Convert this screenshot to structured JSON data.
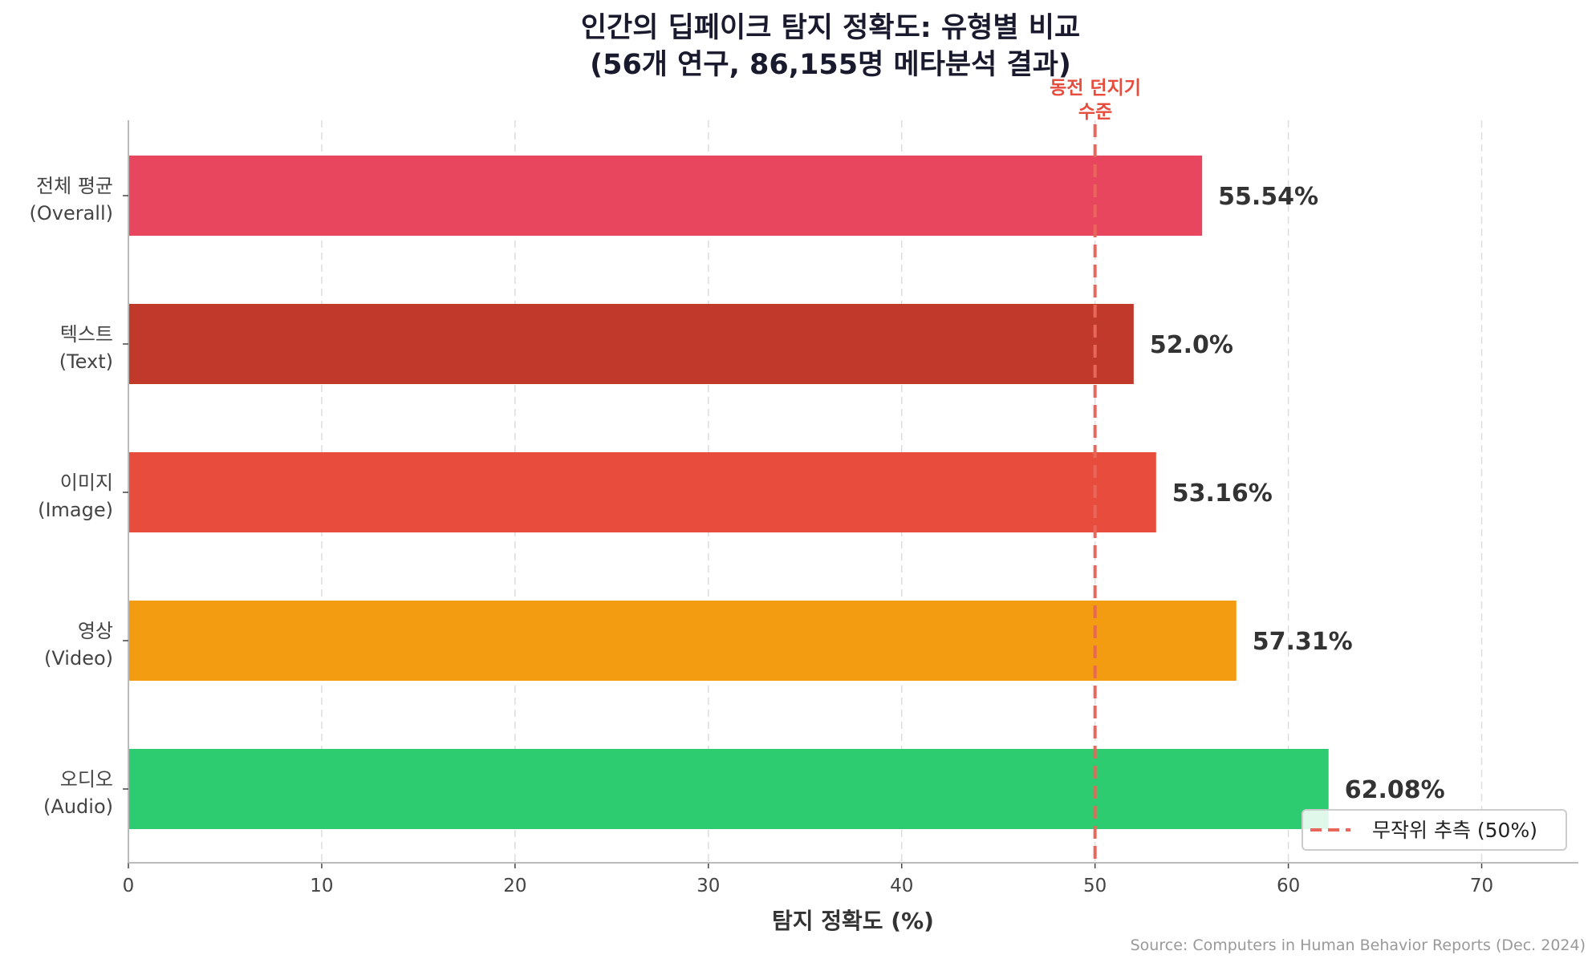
{
  "chart_data": {
    "type": "bar",
    "orientation": "horizontal",
    "title": [
      "인간의 딥페이크 탐지 정확도: 유형별 비교",
      "(56개 연구, 86,155명 메타분석 결과)"
    ],
    "categories": [
      [
        "전체 평균",
        "(Overall)"
      ],
      [
        "텍스트",
        "(Text)"
      ],
      [
        "이미지",
        "(Image)"
      ],
      [
        "영상",
        "(Video)"
      ],
      [
        "오디오",
        "(Audio)"
      ]
    ],
    "values": [
      55.54,
      52.0,
      53.16,
      57.31,
      62.08
    ],
    "value_labels": [
      "55.54%",
      "52.0%",
      "53.16%",
      "57.31%",
      "62.08%"
    ],
    "colors": [
      "#e8455f",
      "#c0392b",
      "#e74c3c",
      "#f39c12",
      "#2ecc71"
    ],
    "xlabel": "탐지 정확도 (%)",
    "ylabel": "",
    "xlim": [
      0,
      75
    ],
    "xticks": [
      "0",
      "10",
      "20",
      "30",
      "40",
      "50",
      "60",
      "70"
    ],
    "grid": "x, dashed",
    "reference_line": {
      "value": 50,
      "color": "#e8675a",
      "legend": "무작위 추측 (50%)",
      "annotation": [
        "동전 던지기",
        "수준"
      ]
    },
    "legend_placement": "bottom-right",
    "source": "Source: Computers in Human Behavior Reports (Dec. 2024)"
  }
}
